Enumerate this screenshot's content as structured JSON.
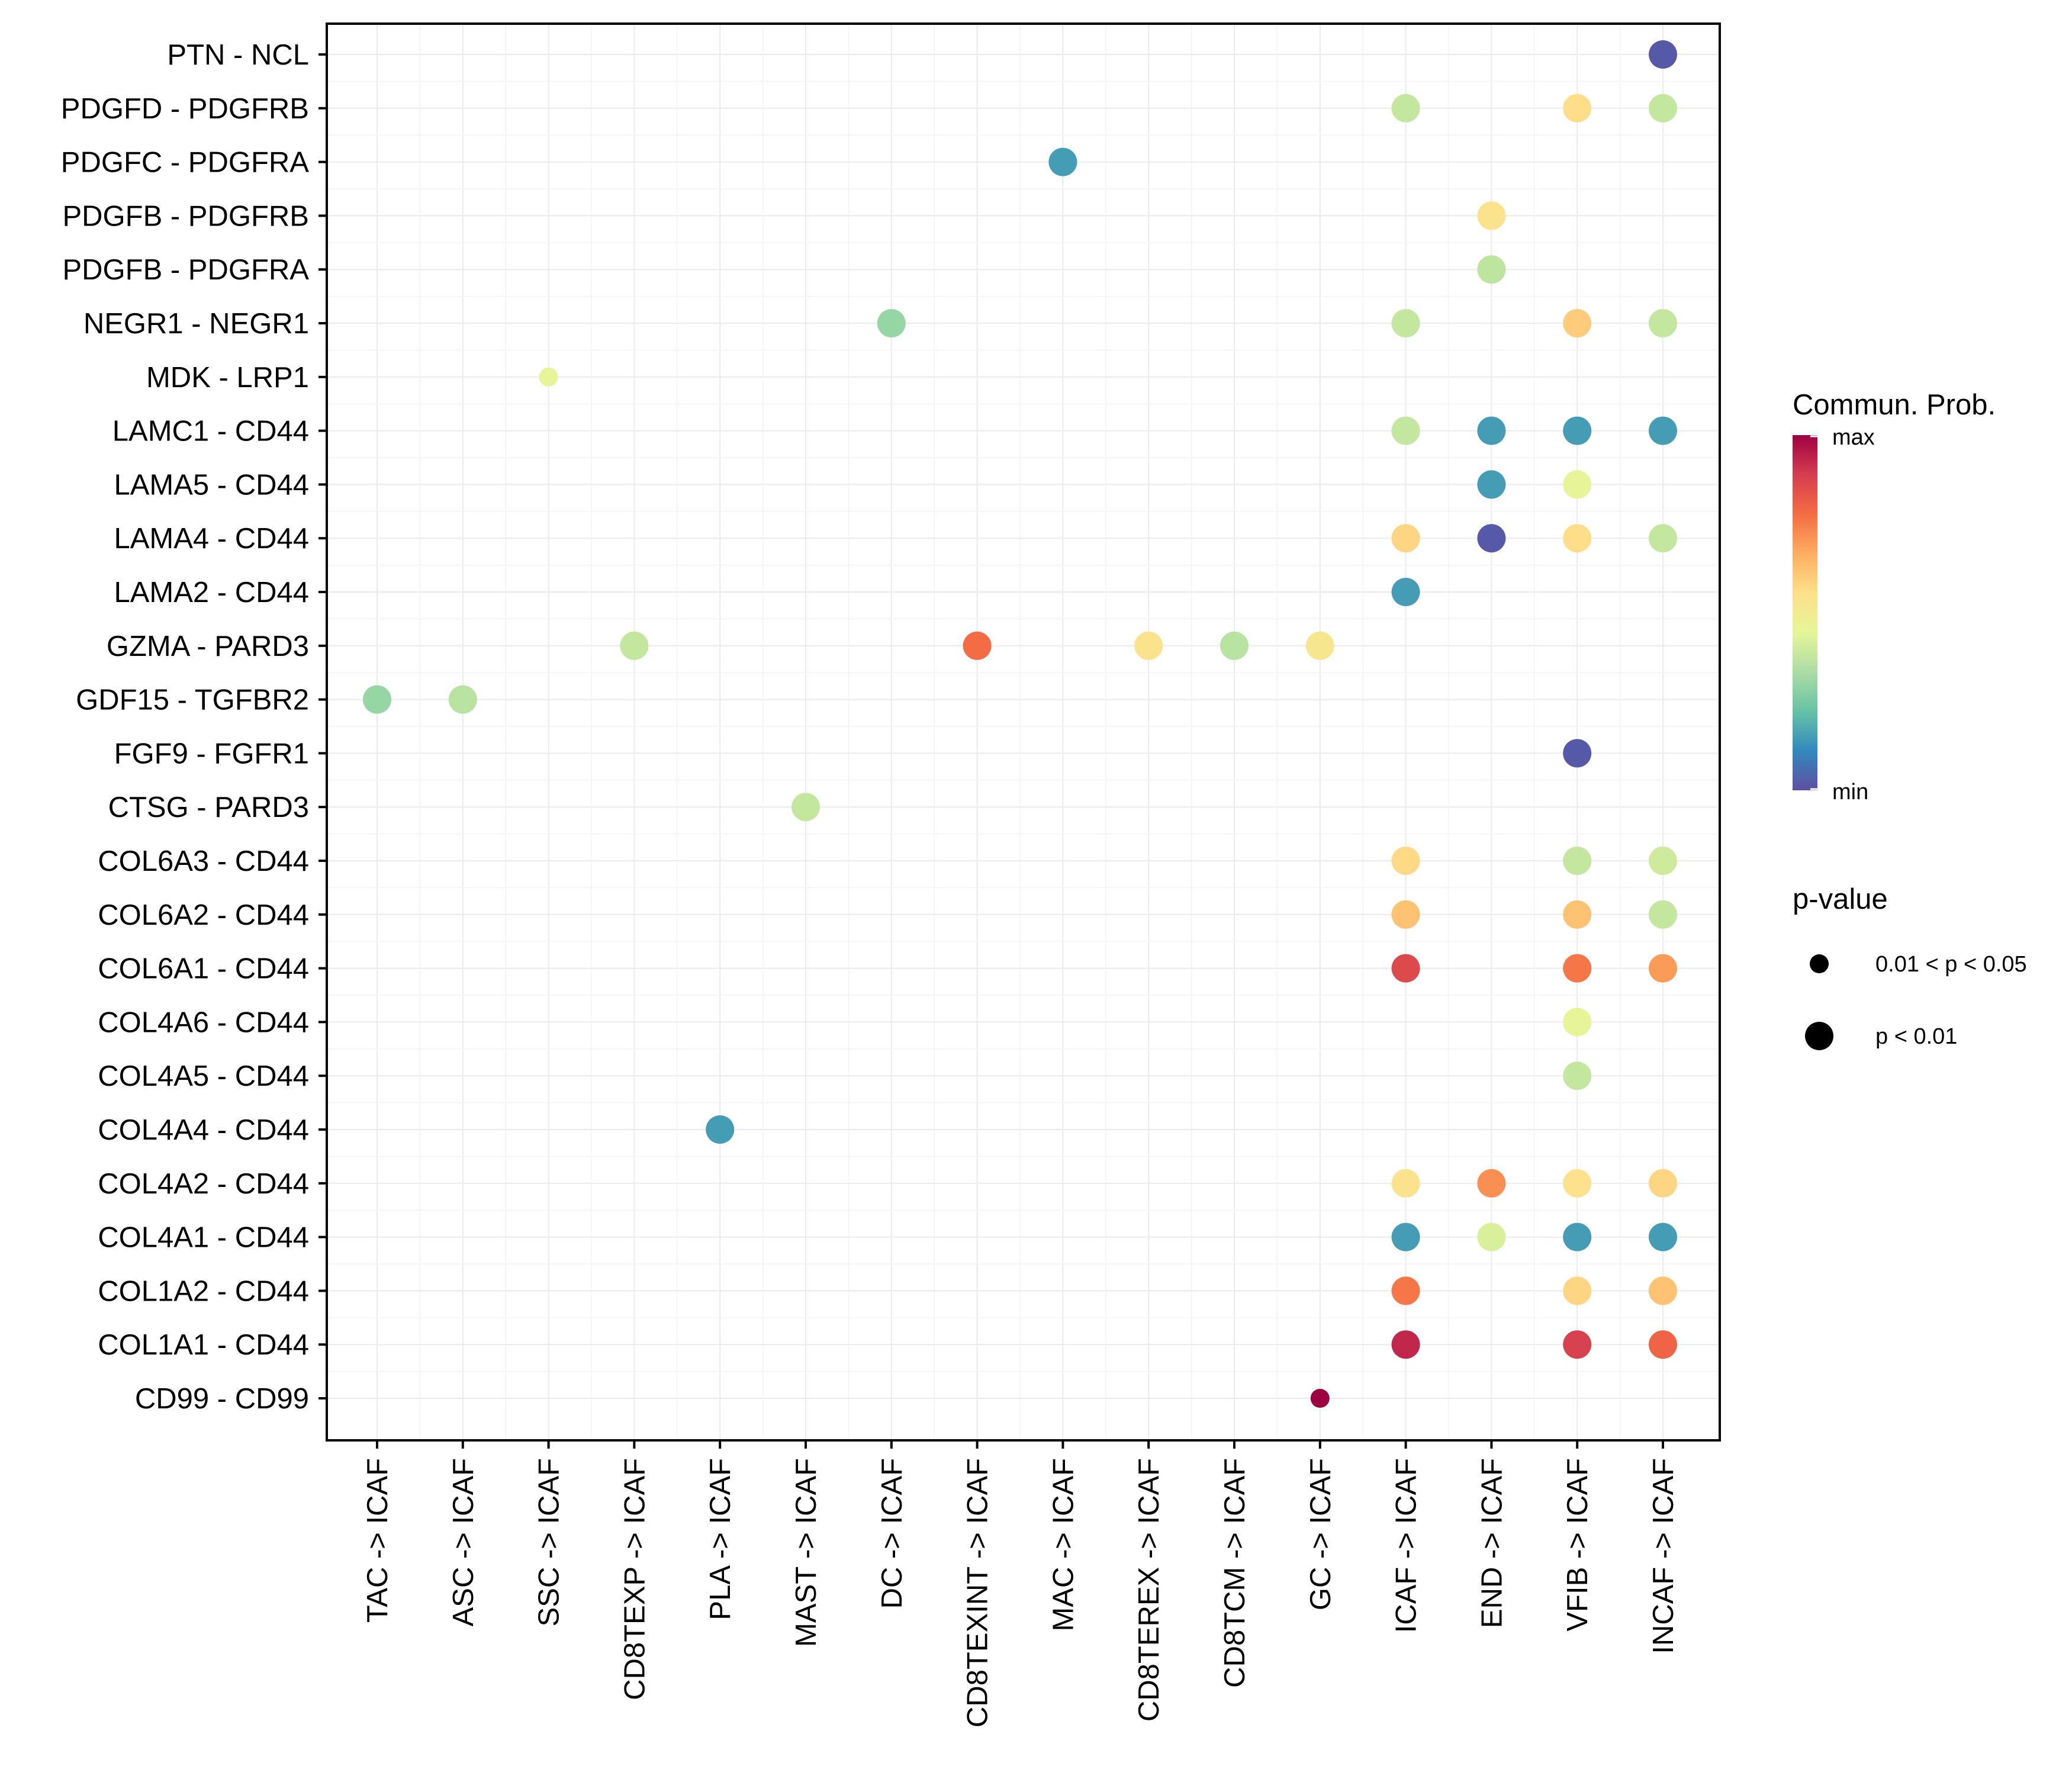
{
  "chart_data": {
    "type": "dot",
    "title": "",
    "xlabel": "",
    "ylabel": "",
    "x_categories": [
      "TAC -> ICAF",
      "ASC -> ICAF",
      "SSC -> ICAF",
      "CD8TEXP -> ICAF",
      "PLA -> ICAF",
      "MAST -> ICAF",
      "DC -> ICAF",
      "CD8TEXINT -> ICAF",
      "MAC -> ICAF",
      "CD8TEREX -> ICAF",
      "CD8TCM -> ICAF",
      "GC -> ICAF",
      "ICAF -> ICAF",
      "END -> ICAF",
      "VFIB -> ICAF",
      "INCAF -> ICAF"
    ],
    "y_categories": [
      "PTN - NCL",
      "PDGFD - PDGFRB",
      "PDGFC - PDGFRA",
      "PDGFB - PDGFRB",
      "PDGFB - PDGFRA",
      "NEGR1 - NEGR1",
      "MDK - LRP1",
      "LAMC1 - CD44",
      "LAMA5 - CD44",
      "LAMA4 - CD44",
      "LAMA2 - CD44",
      "GZMA - PARD3",
      "GDF15 - TGFBR2",
      "FGF9 - FGFR1",
      "CTSG - PARD3",
      "COL6A3 - CD44",
      "COL6A2 - CD44",
      "COL6A1 - CD44",
      "COL4A6 - CD44",
      "COL4A5 - CD44",
      "COL4A4 - CD44",
      "COL4A2 - CD44",
      "COL4A1 - CD44",
      "COL1A2 - CD44",
      "COL1A1 - CD44",
      "CD99 - CD99"
    ],
    "value_scale": "relative 0 (min) to 1 (max)",
    "points": [
      {
        "x": "INCAF -> ICAF",
        "y": "PTN - NCL",
        "prob": 0.02,
        "pvalue": "p < 0.01"
      },
      {
        "x": "ICAF -> ICAF",
        "y": "PDGFD - PDGFRB",
        "prob": 0.38,
        "pvalue": "p < 0.01"
      },
      {
        "x": "VFIB -> ICAF",
        "y": "PDGFD - PDGFRB",
        "prob": 0.56,
        "pvalue": "p < 0.01"
      },
      {
        "x": "INCAF -> ICAF",
        "y": "PDGFD - PDGFRB",
        "prob": 0.38,
        "pvalue": "p < 0.01"
      },
      {
        "x": "MAC -> ICAF",
        "y": "PDGFC - PDGFRA",
        "prob": 0.15,
        "pvalue": "p < 0.01"
      },
      {
        "x": "END -> ICAF",
        "y": "PDGFB - PDGFRB",
        "prob": 0.54,
        "pvalue": "p < 0.01"
      },
      {
        "x": "END -> ICAF",
        "y": "PDGFB - PDGFRA",
        "prob": 0.37,
        "pvalue": "p < 0.01"
      },
      {
        "x": "DC -> ICAF",
        "y": "NEGR1 - NEGR1",
        "prob": 0.3,
        "pvalue": "p < 0.01"
      },
      {
        "x": "ICAF -> ICAF",
        "y": "NEGR1 - NEGR1",
        "prob": 0.38,
        "pvalue": "p < 0.01"
      },
      {
        "x": "VFIB -> ICAF",
        "y": "NEGR1 - NEGR1",
        "prob": 0.6,
        "pvalue": "p < 0.01"
      },
      {
        "x": "INCAF -> ICAF",
        "y": "NEGR1 - NEGR1",
        "prob": 0.38,
        "pvalue": "p < 0.01"
      },
      {
        "x": "SSC -> ICAF",
        "y": "MDK - LRP1",
        "prob": 0.45,
        "pvalue": "0.01 < p < 0.05"
      },
      {
        "x": "ICAF -> ICAF",
        "y": "LAMC1 - CD44",
        "prob": 0.38,
        "pvalue": "p < 0.01"
      },
      {
        "x": "END -> ICAF",
        "y": "LAMC1 - CD44",
        "prob": 0.15,
        "pvalue": "p < 0.01"
      },
      {
        "x": "VFIB -> ICAF",
        "y": "LAMC1 - CD44",
        "prob": 0.15,
        "pvalue": "p < 0.01"
      },
      {
        "x": "INCAF -> ICAF",
        "y": "LAMC1 - CD44",
        "prob": 0.15,
        "pvalue": "p < 0.01"
      },
      {
        "x": "END -> ICAF",
        "y": "LAMA5 - CD44",
        "prob": 0.15,
        "pvalue": "p < 0.01"
      },
      {
        "x": "VFIB -> ICAF",
        "y": "LAMA5 - CD44",
        "prob": 0.45,
        "pvalue": "p < 0.01"
      },
      {
        "x": "ICAF -> ICAF",
        "y": "LAMA4 - CD44",
        "prob": 0.58,
        "pvalue": "p < 0.01"
      },
      {
        "x": "END -> ICAF",
        "y": "LAMA4 - CD44",
        "prob": 0.02,
        "pvalue": "p < 0.01"
      },
      {
        "x": "VFIB -> ICAF",
        "y": "LAMA4 - CD44",
        "prob": 0.56,
        "pvalue": "p < 0.01"
      },
      {
        "x": "INCAF -> ICAF",
        "y": "LAMA4 - CD44",
        "prob": 0.38,
        "pvalue": "p < 0.01"
      },
      {
        "x": "ICAF -> ICAF",
        "y": "LAMA2 - CD44",
        "prob": 0.15,
        "pvalue": "p < 0.01"
      },
      {
        "x": "CD8TEXP -> ICAF",
        "y": "GZMA - PARD3",
        "prob": 0.38,
        "pvalue": "p < 0.01"
      },
      {
        "x": "CD8TEXINT -> ICAF",
        "y": "GZMA - PARD3",
        "prob": 0.78,
        "pvalue": "p < 0.01"
      },
      {
        "x": "CD8TEREX -> ICAF",
        "y": "GZMA - PARD3",
        "prob": 0.54,
        "pvalue": "p < 0.01"
      },
      {
        "x": "CD8TCM -> ICAF",
        "y": "GZMA - PARD3",
        "prob": 0.36,
        "pvalue": "p < 0.01"
      },
      {
        "x": "GC -> ICAF",
        "y": "GZMA - PARD3",
        "prob": 0.52,
        "pvalue": "p < 0.01"
      },
      {
        "x": "TAC -> ICAF",
        "y": "GDF15 - TGFBR2",
        "prob": 0.3,
        "pvalue": "p < 0.01"
      },
      {
        "x": "ASC -> ICAF",
        "y": "GDF15 - TGFBR2",
        "prob": 0.36,
        "pvalue": "p < 0.01"
      },
      {
        "x": "VFIB -> ICAF",
        "y": "FGF9 - FGFR1",
        "prob": 0.02,
        "pvalue": "p < 0.01"
      },
      {
        "x": "MAST -> ICAF",
        "y": "CTSG - PARD3",
        "prob": 0.38,
        "pvalue": "p < 0.01"
      },
      {
        "x": "ICAF -> ICAF",
        "y": "COL6A3 - CD44",
        "prob": 0.57,
        "pvalue": "p < 0.01"
      },
      {
        "x": "VFIB -> ICAF",
        "y": "COL6A3 - CD44",
        "prob": 0.38,
        "pvalue": "p < 0.01"
      },
      {
        "x": "INCAF -> ICAF",
        "y": "COL6A3 - CD44",
        "prob": 0.4,
        "pvalue": "p < 0.01"
      },
      {
        "x": "ICAF -> ICAF",
        "y": "COL6A2 - CD44",
        "prob": 0.62,
        "pvalue": "p < 0.01"
      },
      {
        "x": "VFIB -> ICAF",
        "y": "COL6A2 - CD44",
        "prob": 0.62,
        "pvalue": "p < 0.01"
      },
      {
        "x": "INCAF -> ICAF",
        "y": "COL6A2 - CD44",
        "prob": 0.38,
        "pvalue": "p < 0.01"
      },
      {
        "x": "ICAF -> ICAF",
        "y": "COL6A1 - CD44",
        "prob": 0.86,
        "pvalue": "p < 0.01"
      },
      {
        "x": "VFIB -> ICAF",
        "y": "COL6A1 - CD44",
        "prob": 0.76,
        "pvalue": "p < 0.01"
      },
      {
        "x": "INCAF -> ICAF",
        "y": "COL6A1 - CD44",
        "prob": 0.7,
        "pvalue": "p < 0.01"
      },
      {
        "x": "VFIB -> ICAF",
        "y": "COL4A6 - CD44",
        "prob": 0.45,
        "pvalue": "p < 0.01"
      },
      {
        "x": "VFIB -> ICAF",
        "y": "COL4A5 - CD44",
        "prob": 0.38,
        "pvalue": "p < 0.01"
      },
      {
        "x": "PLA -> ICAF",
        "y": "COL4A4 - CD44",
        "prob": 0.15,
        "pvalue": "p < 0.01"
      },
      {
        "x": "ICAF -> ICAF",
        "y": "COL4A2 - CD44",
        "prob": 0.54,
        "pvalue": "p < 0.01"
      },
      {
        "x": "END -> ICAF",
        "y": "COL4A2 - CD44",
        "prob": 0.72,
        "pvalue": "p < 0.01"
      },
      {
        "x": "VFIB -> ICAF",
        "y": "COL4A2 - CD44",
        "prob": 0.55,
        "pvalue": "p < 0.01"
      },
      {
        "x": "INCAF -> ICAF",
        "y": "COL4A2 - CD44",
        "prob": 0.58,
        "pvalue": "p < 0.01"
      },
      {
        "x": "ICAF -> ICAF",
        "y": "COL4A1 - CD44",
        "prob": 0.15,
        "pvalue": "p < 0.01"
      },
      {
        "x": "END -> ICAF",
        "y": "COL4A1 - CD44",
        "prob": 0.42,
        "pvalue": "p < 0.01"
      },
      {
        "x": "VFIB -> ICAF",
        "y": "COL4A1 - CD44",
        "prob": 0.15,
        "pvalue": "p < 0.01"
      },
      {
        "x": "INCAF -> ICAF",
        "y": "COL4A1 - CD44",
        "prob": 0.15,
        "pvalue": "p < 0.01"
      },
      {
        "x": "ICAF -> ICAF",
        "y": "COL1A2 - CD44",
        "prob": 0.76,
        "pvalue": "p < 0.01"
      },
      {
        "x": "VFIB -> ICAF",
        "y": "COL1A2 - CD44",
        "prob": 0.58,
        "pvalue": "p < 0.01"
      },
      {
        "x": "INCAF -> ICAF",
        "y": "COL1A2 - CD44",
        "prob": 0.62,
        "pvalue": "p < 0.01"
      },
      {
        "x": "ICAF -> ICAF",
        "y": "COL1A1 - CD44",
        "prob": 0.93,
        "pvalue": "p < 0.01"
      },
      {
        "x": "VFIB -> ICAF",
        "y": "COL1A1 - CD44",
        "prob": 0.88,
        "pvalue": "p < 0.01"
      },
      {
        "x": "INCAF -> ICAF",
        "y": "COL1A1 - CD44",
        "prob": 0.8,
        "pvalue": "p < 0.01"
      },
      {
        "x": "GC -> ICAF",
        "y": "CD99 - CD99",
        "prob": 1.0,
        "pvalue": "0.01 < p < 0.05"
      }
    ],
    "color_legend": {
      "title": "Commun. Prob.",
      "max_label": "max",
      "min_label": "min"
    },
    "size_legend": {
      "title": "p-value",
      "items": [
        "0.01 < p < 0.05",
        "p < 0.01"
      ]
    },
    "palette": [
      "#5E4FA2",
      "#3288BD",
      "#66C2A5",
      "#ABDDA4",
      "#E6F598",
      "#FEE08B",
      "#FDAE61",
      "#F46D43",
      "#D53E4F",
      "#9E0142"
    ],
    "grid": true
  }
}
